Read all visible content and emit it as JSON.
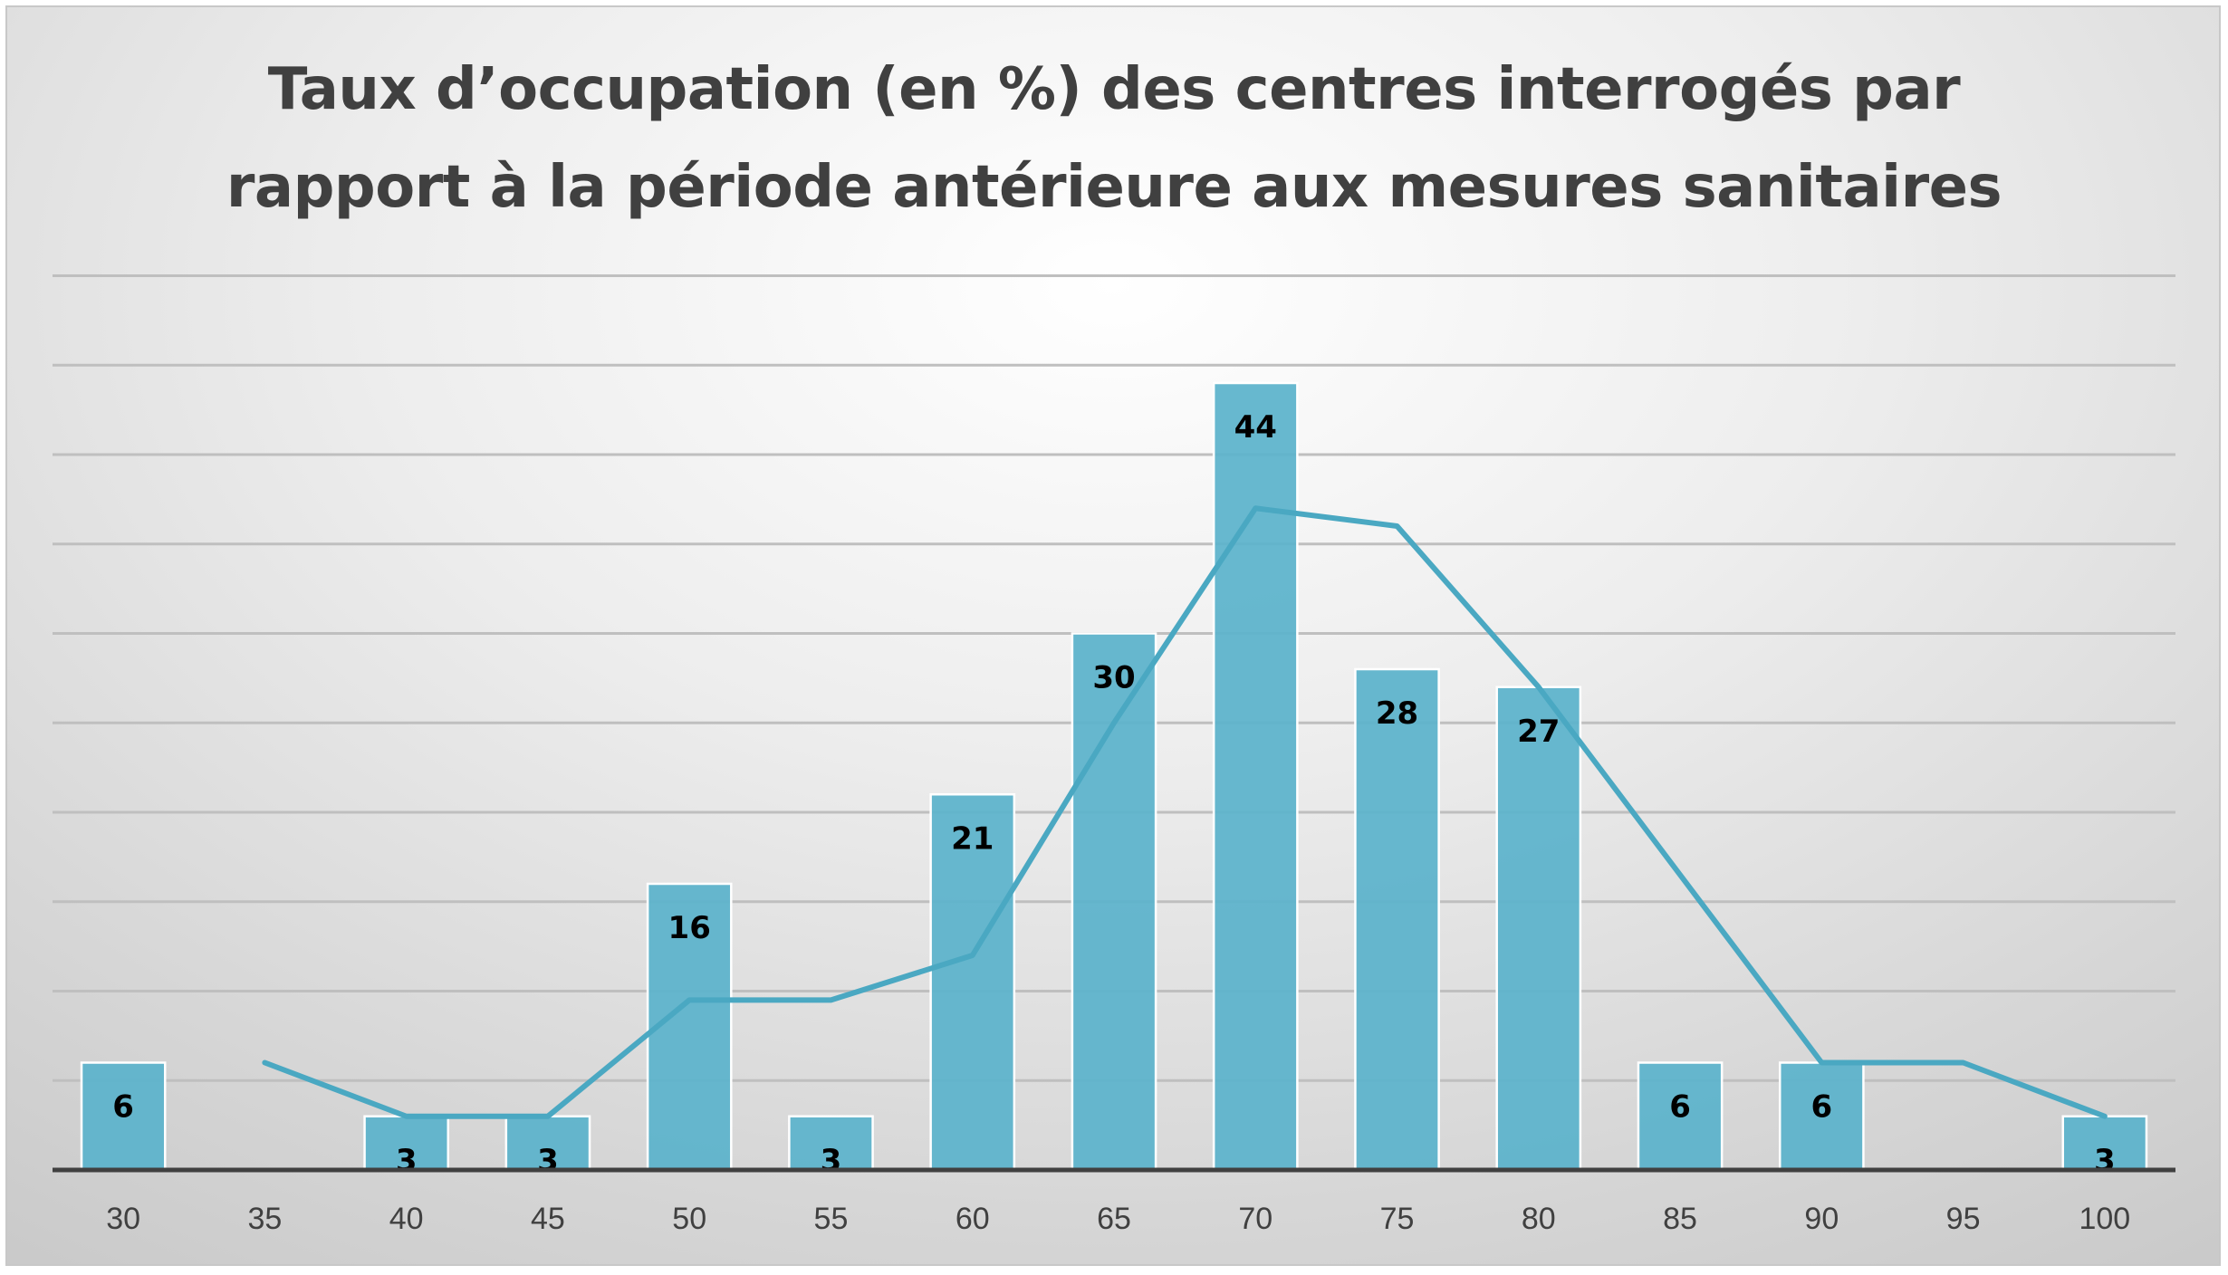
{
  "chart_data": {
    "type": "bar",
    "title": "Taux d’occupation (en %) des centres interrogés par\nrapport à la période antérieure aux mesures sanitaires",
    "xlabel": "",
    "ylabel": "",
    "categories": [
      "30",
      "35",
      "40",
      "45",
      "50",
      "55",
      "60",
      "65",
      "70",
      "75",
      "80",
      "85",
      "90",
      "95",
      "100"
    ],
    "series": [
      {
        "type": "bar",
        "values": [
          6,
          0,
          3,
          3,
          16,
          3,
          21,
          30,
          44,
          28,
          27,
          6,
          6,
          0,
          3
        ],
        "labels": [
          "6",
          "",
          "3",
          "3",
          "16",
          "3",
          "21",
          "30",
          "44",
          "28",
          "27",
          "6",
          "6",
          "",
          "3"
        ],
        "color": "#5bb3cb"
      },
      {
        "type": "line",
        "points": [
          [
            35,
            6
          ],
          [
            40,
            3
          ],
          [
            45,
            3
          ],
          [
            50,
            9.5
          ],
          [
            55,
            9.5
          ],
          [
            60,
            12
          ],
          [
            65,
            25
          ],
          [
            70,
            37
          ],
          [
            75,
            36
          ],
          [
            80,
            27
          ],
          [
            85,
            16.5
          ],
          [
            90,
            6
          ],
          [
            95,
            6
          ],
          [
            100,
            3
          ]
        ],
        "color": "#4aa8c2"
      }
    ],
    "ylim": [
      0,
      50
    ],
    "grid": true,
    "legend": "none",
    "colors": {
      "bar": "#5bb3cb",
      "bar_stroke": "#ffffff",
      "line": "#4aa8c2",
      "grid": "#bfbfbf",
      "axis": "#404040",
      "title": "#404040"
    }
  }
}
